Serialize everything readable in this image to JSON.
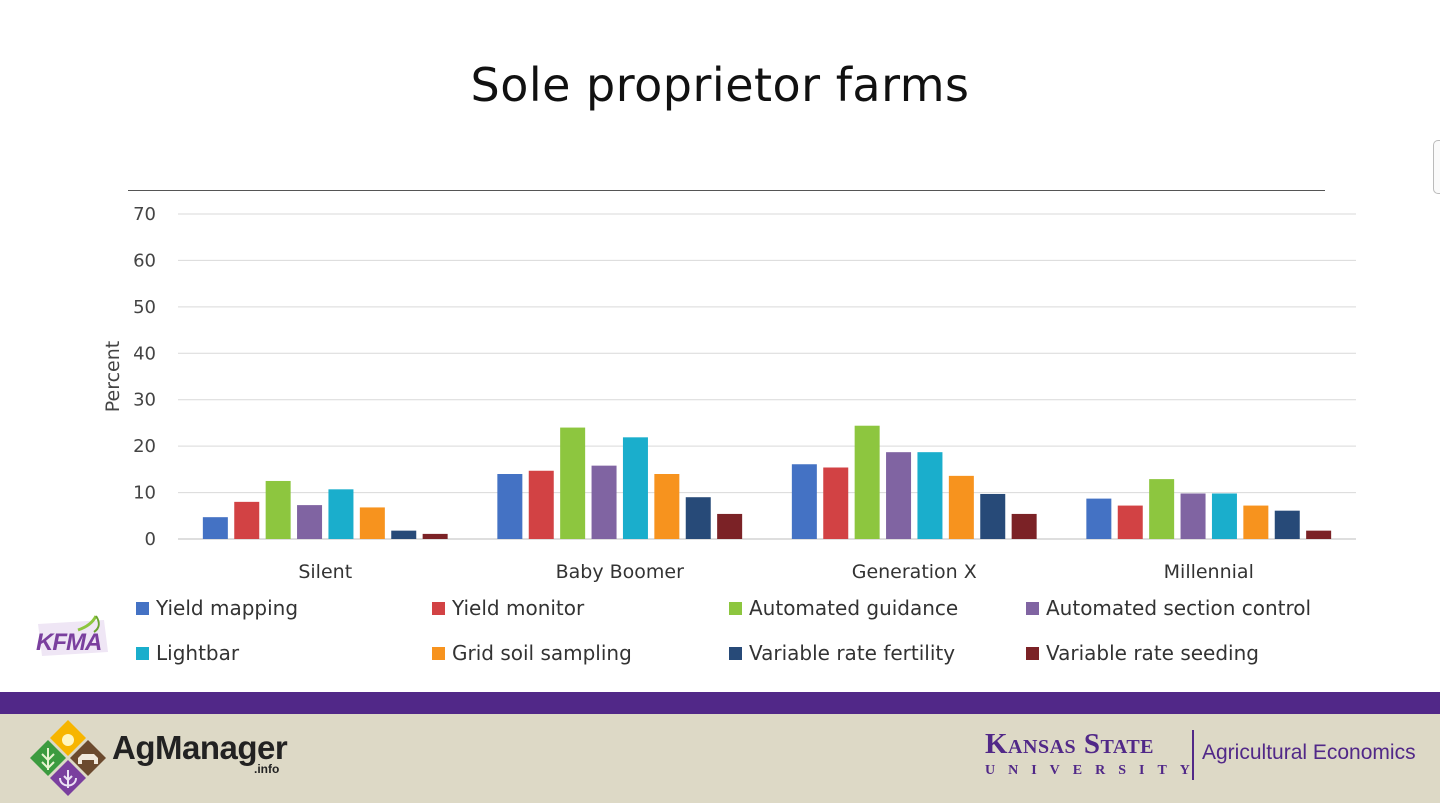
{
  "slide": {
    "title": "Sole proprietor farms"
  },
  "chart_data": {
    "type": "bar",
    "title": "",
    "ylabel": "Percent",
    "xlabel": "",
    "ylim": [
      0,
      70
    ],
    "yticks": [
      0,
      10,
      20,
      30,
      40,
      50,
      60,
      70
    ],
    "grid": true,
    "legend_position": "bottom",
    "categories": [
      "Silent",
      "Baby Boomer",
      "Generation X",
      "Millennial"
    ],
    "series": [
      {
        "name": "Yield mapping",
        "color": "#4472c4",
        "values": [
          4.7,
          14.0,
          16.1,
          8.7
        ]
      },
      {
        "name": "Yield monitor",
        "color": "#d24244",
        "values": [
          8.0,
          14.7,
          15.4,
          7.2
        ]
      },
      {
        "name": "Automated guidance",
        "color": "#8dc63f",
        "values": [
          12.5,
          24.0,
          24.4,
          12.9
        ]
      },
      {
        "name": "Automated section control",
        "color": "#8064a2",
        "values": [
          7.3,
          15.8,
          18.7,
          9.8
        ]
      },
      {
        "name": "Lightbar",
        "color": "#1aaecc",
        "values": [
          10.7,
          21.9,
          18.7,
          9.8
        ]
      },
      {
        "name": "Grid soil sampling",
        "color": "#f7931e",
        "values": [
          6.8,
          14.0,
          13.6,
          7.2
        ]
      },
      {
        "name": "Variable rate fertility",
        "color": "#274a78",
        "values": [
          1.8,
          9.0,
          9.7,
          6.1
        ]
      },
      {
        "name": "Variable rate seeding",
        "color": "#7b2226",
        "values": [
          1.1,
          5.4,
          5.4,
          1.8
        ]
      }
    ]
  },
  "footer": {
    "agmanager_name": "AgManager",
    "agmanager_suffix": ".info",
    "kfma_logo_text": "KFMA",
    "university_name": "Kansas State",
    "university_word": "UNIVERSITY",
    "department": "Agricultural Economics"
  }
}
